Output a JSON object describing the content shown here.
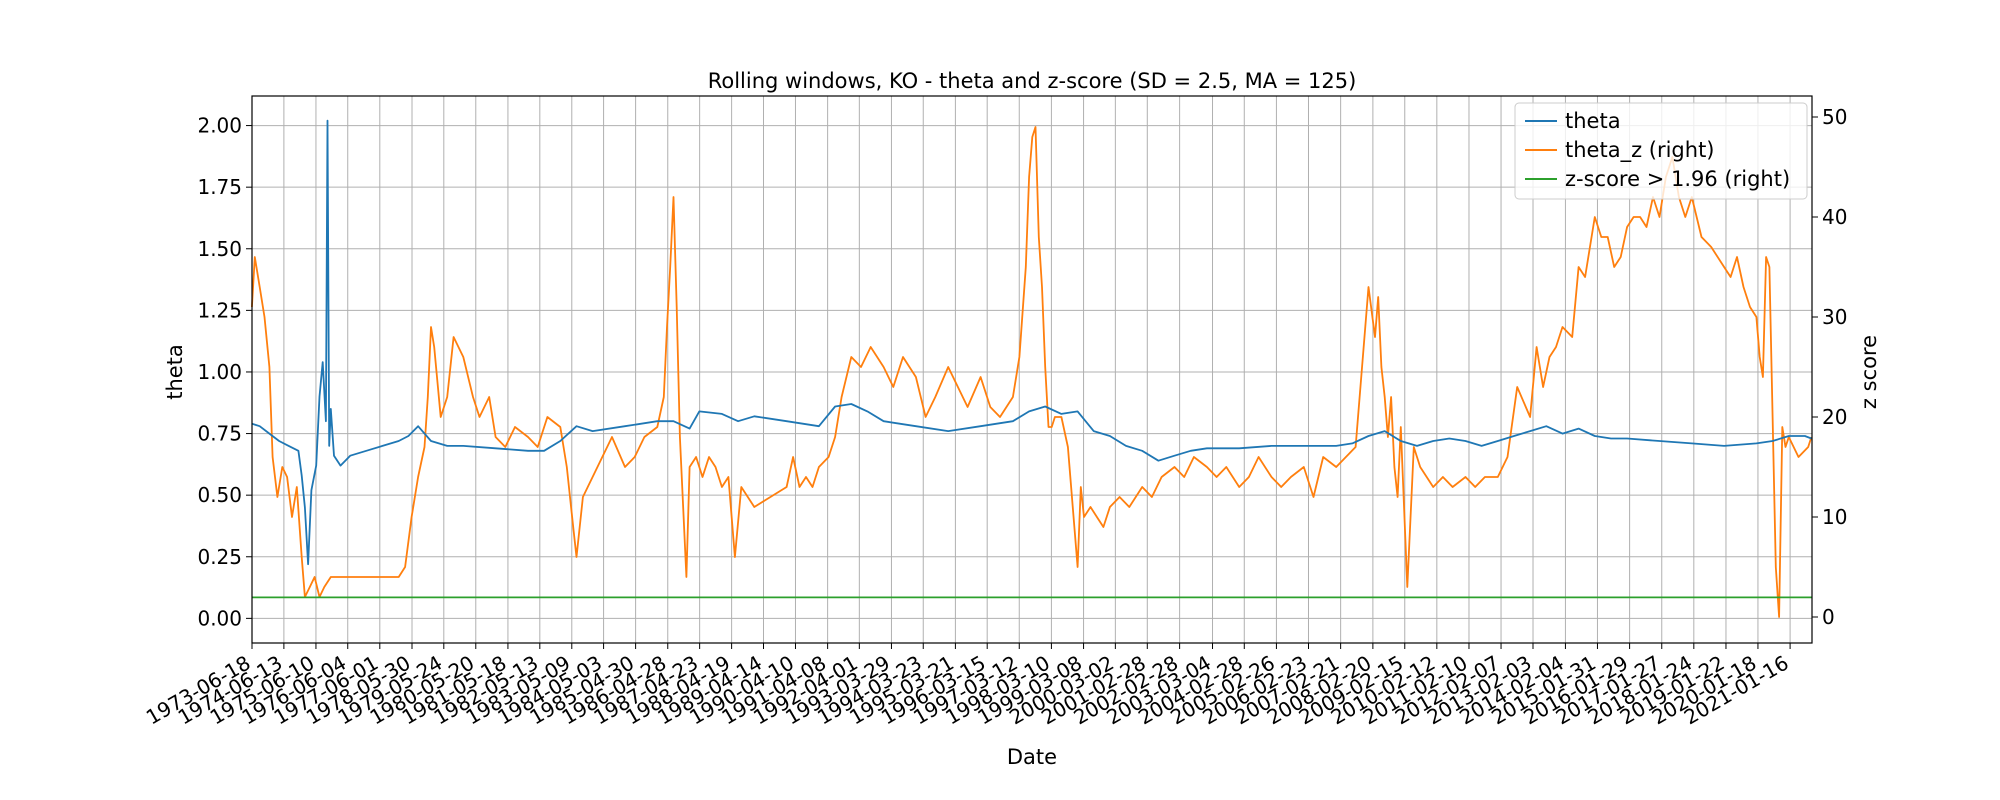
{
  "chart_data": {
    "type": "line",
    "title": "Rolling windows, KO - theta and z-score (SD = 2.5, MA = 125)",
    "xlabel": "Date",
    "ylabel": "theta",
    "ylabel_right": "z score",
    "x_range": [
      "1973-06-18",
      "2021-09-20"
    ],
    "ylim": [
      -0.1,
      2.12
    ],
    "ylim_right": [
      -2.6,
      52.1
    ],
    "y_ticks": [
      0.0,
      0.25,
      0.5,
      0.75,
      1.0,
      1.25,
      1.5,
      1.75,
      2.0
    ],
    "y_tick_labels": [
      "0.00",
      "0.25",
      "0.50",
      "0.75",
      "1.00",
      "1.25",
      "1.50",
      "1.75",
      "2.00"
    ],
    "y_right_ticks": [
      0,
      10,
      20,
      30,
      40,
      50
    ],
    "y_right_tick_labels": [
      "0",
      "10",
      "20",
      "30",
      "40",
      "50"
    ],
    "x_tick_labels": [
      "1973-06-18",
      "1974-06-13",
      "1975-06-10",
      "1976-06-04",
      "1977-06-01",
      "1978-05-30",
      "1979-05-24",
      "1980-05-20",
      "1981-05-18",
      "1982-05-13",
      "1983-05-09",
      "1984-05-03",
      "1985-04-30",
      "1986-04-28",
      "1987-04-23",
      "1988-04-19",
      "1989-04-14",
      "1990-04-10",
      "1991-04-08",
      "1992-04-01",
      "1993-03-29",
      "1994-03-23",
      "1995-03-21",
      "1996-03-15",
      "1997-03-12",
      "1998-03-10",
      "1999-03-08",
      "2000-03-02",
      "2001-02-28",
      "2002-02-28",
      "2003-03-04",
      "2004-02-28",
      "2005-02-26",
      "2006-02-23",
      "2007-02-21",
      "2008-02-20",
      "2009-02-15",
      "2010-02-12",
      "2011-02-10",
      "2012-02-07",
      "2013-02-03",
      "2014-02-04",
      "2015-01-31",
      "2016-01-29",
      "2017-01-27",
      "2018-01-24",
      "2019-01-22",
      "2020-01-18",
      "2021-01-16"
    ],
    "grid": true,
    "legend_position": "top-right",
    "series": [
      {
        "name": "theta",
        "axis": "left",
        "color": "#1f77b4",
        "x": [
          1973.46,
          1973.7,
          1974.0,
          1974.3,
          1974.6,
          1974.9,
          1975.0,
          1975.1,
          1975.2,
          1975.3,
          1975.45,
          1975.55,
          1975.65,
          1975.75,
          1975.8,
          1975.85,
          1975.9,
          1976.0,
          1976.2,
          1976.5,
          1977.0,
          1977.5,
          1978.0,
          1978.3,
          1978.6,
          1979.0,
          1979.5,
          1980.0,
          1981.0,
          1982.0,
          1982.5,
          1983.0,
          1983.5,
          1984.0,
          1985.0,
          1986.0,
          1986.5,
          1987.0,
          1987.3,
          1988.0,
          1988.5,
          1989.0,
          1990.0,
          1991.0,
          1991.5,
          1992.0,
          1992.5,
          1993.0,
          1994.0,
          1995.0,
          1996.0,
          1997.0,
          1997.5,
          1998.0,
          1998.5,
          1999.0,
          1999.5,
          2000.0,
          2000.5,
          2001.0,
          2001.5,
          2002.0,
          2002.5,
          2003.0,
          2004.0,
          2005.0,
          2006.0,
          2007.0,
          2007.5,
          2008.0,
          2008.5,
          2009.0,
          2009.5,
          2010.0,
          2010.5,
          2011.0,
          2011.5,
          2012.0,
          2012.5,
          2013.0,
          2013.5,
          2014.0,
          2014.5,
          2015.0,
          2015.5,
          2016.0,
          2017.0,
          2018.0,
          2019.0,
          2020.0,
          2020.5,
          2021.0,
          2021.5,
          2021.7
        ],
        "values": [
          0.79,
          0.78,
          0.75,
          0.72,
          0.7,
          0.68,
          0.58,
          0.45,
          0.22,
          0.52,
          0.62,
          0.9,
          1.04,
          0.8,
          2.02,
          0.7,
          0.85,
          0.66,
          0.62,
          0.66,
          0.68,
          0.7,
          0.72,
          0.74,
          0.78,
          0.72,
          0.7,
          0.7,
          0.69,
          0.68,
          0.68,
          0.72,
          0.78,
          0.76,
          0.78,
          0.8,
          0.8,
          0.77,
          0.84,
          0.83,
          0.8,
          0.82,
          0.8,
          0.78,
          0.86,
          0.87,
          0.84,
          0.8,
          0.78,
          0.76,
          0.78,
          0.8,
          0.84,
          0.86,
          0.83,
          0.84,
          0.76,
          0.74,
          0.7,
          0.68,
          0.64,
          0.66,
          0.68,
          0.69,
          0.69,
          0.7,
          0.7,
          0.7,
          0.71,
          0.74,
          0.76,
          0.72,
          0.7,
          0.72,
          0.73,
          0.72,
          0.7,
          0.72,
          0.74,
          0.76,
          0.78,
          0.75,
          0.77,
          0.74,
          0.73,
          0.73,
          0.72,
          0.71,
          0.7,
          0.71,
          0.72,
          0.74,
          0.74,
          0.73
        ]
      },
      {
        "name": "theta_z (right)",
        "axis": "right",
        "color": "#ff7f0e",
        "x": [
          1973.46,
          1973.55,
          1973.7,
          1973.85,
          1974.0,
          1974.1,
          1974.25,
          1974.4,
          1974.55,
          1974.7,
          1974.85,
          1975.0,
          1975.1,
          1975.25,
          1975.4,
          1975.55,
          1975.7,
          1975.9,
          1976.0,
          1976.3,
          1976.6,
          1977.0,
          1977.5,
          1978.0,
          1978.2,
          1978.4,
          1978.6,
          1978.8,
          1978.9,
          1979.0,
          1979.1,
          1979.3,
          1979.5,
          1979.7,
          1980.0,
          1980.3,
          1980.5,
          1980.8,
          1981.0,
          1981.3,
          1981.6,
          1982.0,
          1982.3,
          1982.6,
          1983.0,
          1983.2,
          1983.4,
          1983.5,
          1983.7,
          1984.0,
          1984.3,
          1984.6,
          1985.0,
          1985.3,
          1985.6,
          1986.0,
          1986.2,
          1986.3,
          1986.4,
          1986.5,
          1986.6,
          1986.7,
          1986.9,
          1987.0,
          1987.2,
          1987.4,
          1987.6,
          1987.8,
          1988.0,
          1988.2,
          1988.4,
          1988.6,
          1988.8,
          1989.0,
          1989.5,
          1990.0,
          1990.2,
          1990.4,
          1990.6,
          1990.8,
          1991.0,
          1991.3,
          1991.5,
          1991.7,
          1992.0,
          1992.3,
          1992.6,
          1993.0,
          1993.3,
          1993.6,
          1994.0,
          1994.3,
          1994.6,
          1995.0,
          1995.3,
          1995.6,
          1996.0,
          1996.3,
          1996.6,
          1997.0,
          1997.2,
          1997.4,
          1997.5,
          1997.6,
          1997.7,
          1997.8,
          1997.9,
          1998.0,
          1998.1,
          1998.2,
          1998.3,
          1998.5,
          1998.7,
          1999.0,
          1999.1,
          1999.2,
          1999.4,
          1999.6,
          1999.8,
          2000.0,
          2000.3,
          2000.6,
          2001.0,
          2001.3,
          2001.6,
          2002.0,
          2002.3,
          2002.6,
          2003.0,
          2003.3,
          2003.6,
          2004.0,
          2004.3,
          2004.6,
          2005.0,
          2005.3,
          2005.6,
          2006.0,
          2006.3,
          2006.6,
          2007.0,
          2007.3,
          2007.6,
          2008.0,
          2008.2,
          2008.3,
          2008.4,
          2008.5,
          2008.6,
          2008.7,
          2008.8,
          2008.9,
          2009.0,
          2009.2,
          2009.4,
          2009.5,
          2009.6,
          2009.8,
          2010.0,
          2010.3,
          2010.6,
          2011.0,
          2011.3,
          2011.6,
          2012.0,
          2012.3,
          2012.6,
          2013.0,
          2013.2,
          2013.4,
          2013.6,
          2013.8,
          2014.0,
          2014.3,
          2014.5,
          2014.7,
          2015.0,
          2015.2,
          2015.4,
          2015.6,
          2015.8,
          2016.0,
          2016.2,
          2016.4,
          2016.6,
          2016.8,
          2017.0,
          2017.2,
          2017.4,
          2017.6,
          2017.8,
          2018.0,
          2018.3,
          2018.6,
          2019.0,
          2019.2,
          2019.4,
          2019.6,
          2019.8,
          2020.0,
          2020.1,
          2020.2,
          2020.3,
          2020.4,
          2020.5,
          2020.6,
          2020.7,
          2020.8,
          2020.9,
          2021.0,
          2021.3,
          2021.6,
          2021.7
        ],
        "values": [
          31,
          36,
          33,
          30,
          25,
          16,
          12,
          15,
          14,
          10,
          13,
          6,
          2,
          3,
          4,
          2,
          3,
          4,
          4,
          4,
          4,
          4,
          4,
          4,
          5,
          10,
          14,
          17,
          22,
          29,
          27,
          20,
          22,
          28,
          26,
          22,
          20,
          22,
          18,
          17,
          19,
          18,
          17,
          20,
          19,
          15,
          9,
          6,
          12,
          14,
          16,
          18,
          15,
          16,
          18,
          19,
          22,
          29,
          35,
          42,
          31,
          18,
          4,
          15,
          16,
          14,
          16,
          15,
          13,
          14,
          6,
          13,
          12,
          11,
          12,
          13,
          16,
          13,
          14,
          13,
          15,
          16,
          18,
          22,
          26,
          25,
          27,
          25,
          23,
          26,
          24,
          20,
          22,
          25,
          23,
          21,
          24,
          21,
          20,
          22,
          26,
          35,
          44,
          48,
          49,
          38,
          33,
          25,
          19,
          19,
          20,
          20,
          17,
          5,
          13,
          10,
          11,
          10,
          9,
          11,
          12,
          11,
          13,
          12,
          14,
          15,
          14,
          16,
          15,
          14,
          15,
          13,
          14,
          16,
          14,
          13,
          14,
          15,
          12,
          16,
          15,
          16,
          17,
          33,
          28,
          32,
          25,
          22,
          18,
          22,
          15,
          12,
          19,
          3,
          17,
          16,
          15,
          14,
          13,
          14,
          13,
          14,
          13,
          14,
          14,
          16,
          23,
          20,
          27,
          23,
          26,
          27,
          29,
          28,
          35,
          34,
          40,
          38,
          38,
          35,
          36,
          39,
          40,
          40,
          39,
          42,
          40,
          44,
          46,
          42,
          40,
          42,
          38,
          37,
          35,
          34,
          36,
          33,
          31,
          30,
          26,
          24,
          36,
          35,
          20,
          5,
          0,
          19,
          17,
          18,
          16,
          17,
          18
        ]
      },
      {
        "name": "z-score > 1.96 (right)",
        "axis": "right",
        "color": "#2ca02c",
        "x": [
          1973.46,
          2021.72
        ],
        "values": [
          1.96,
          1.96
        ]
      }
    ]
  }
}
